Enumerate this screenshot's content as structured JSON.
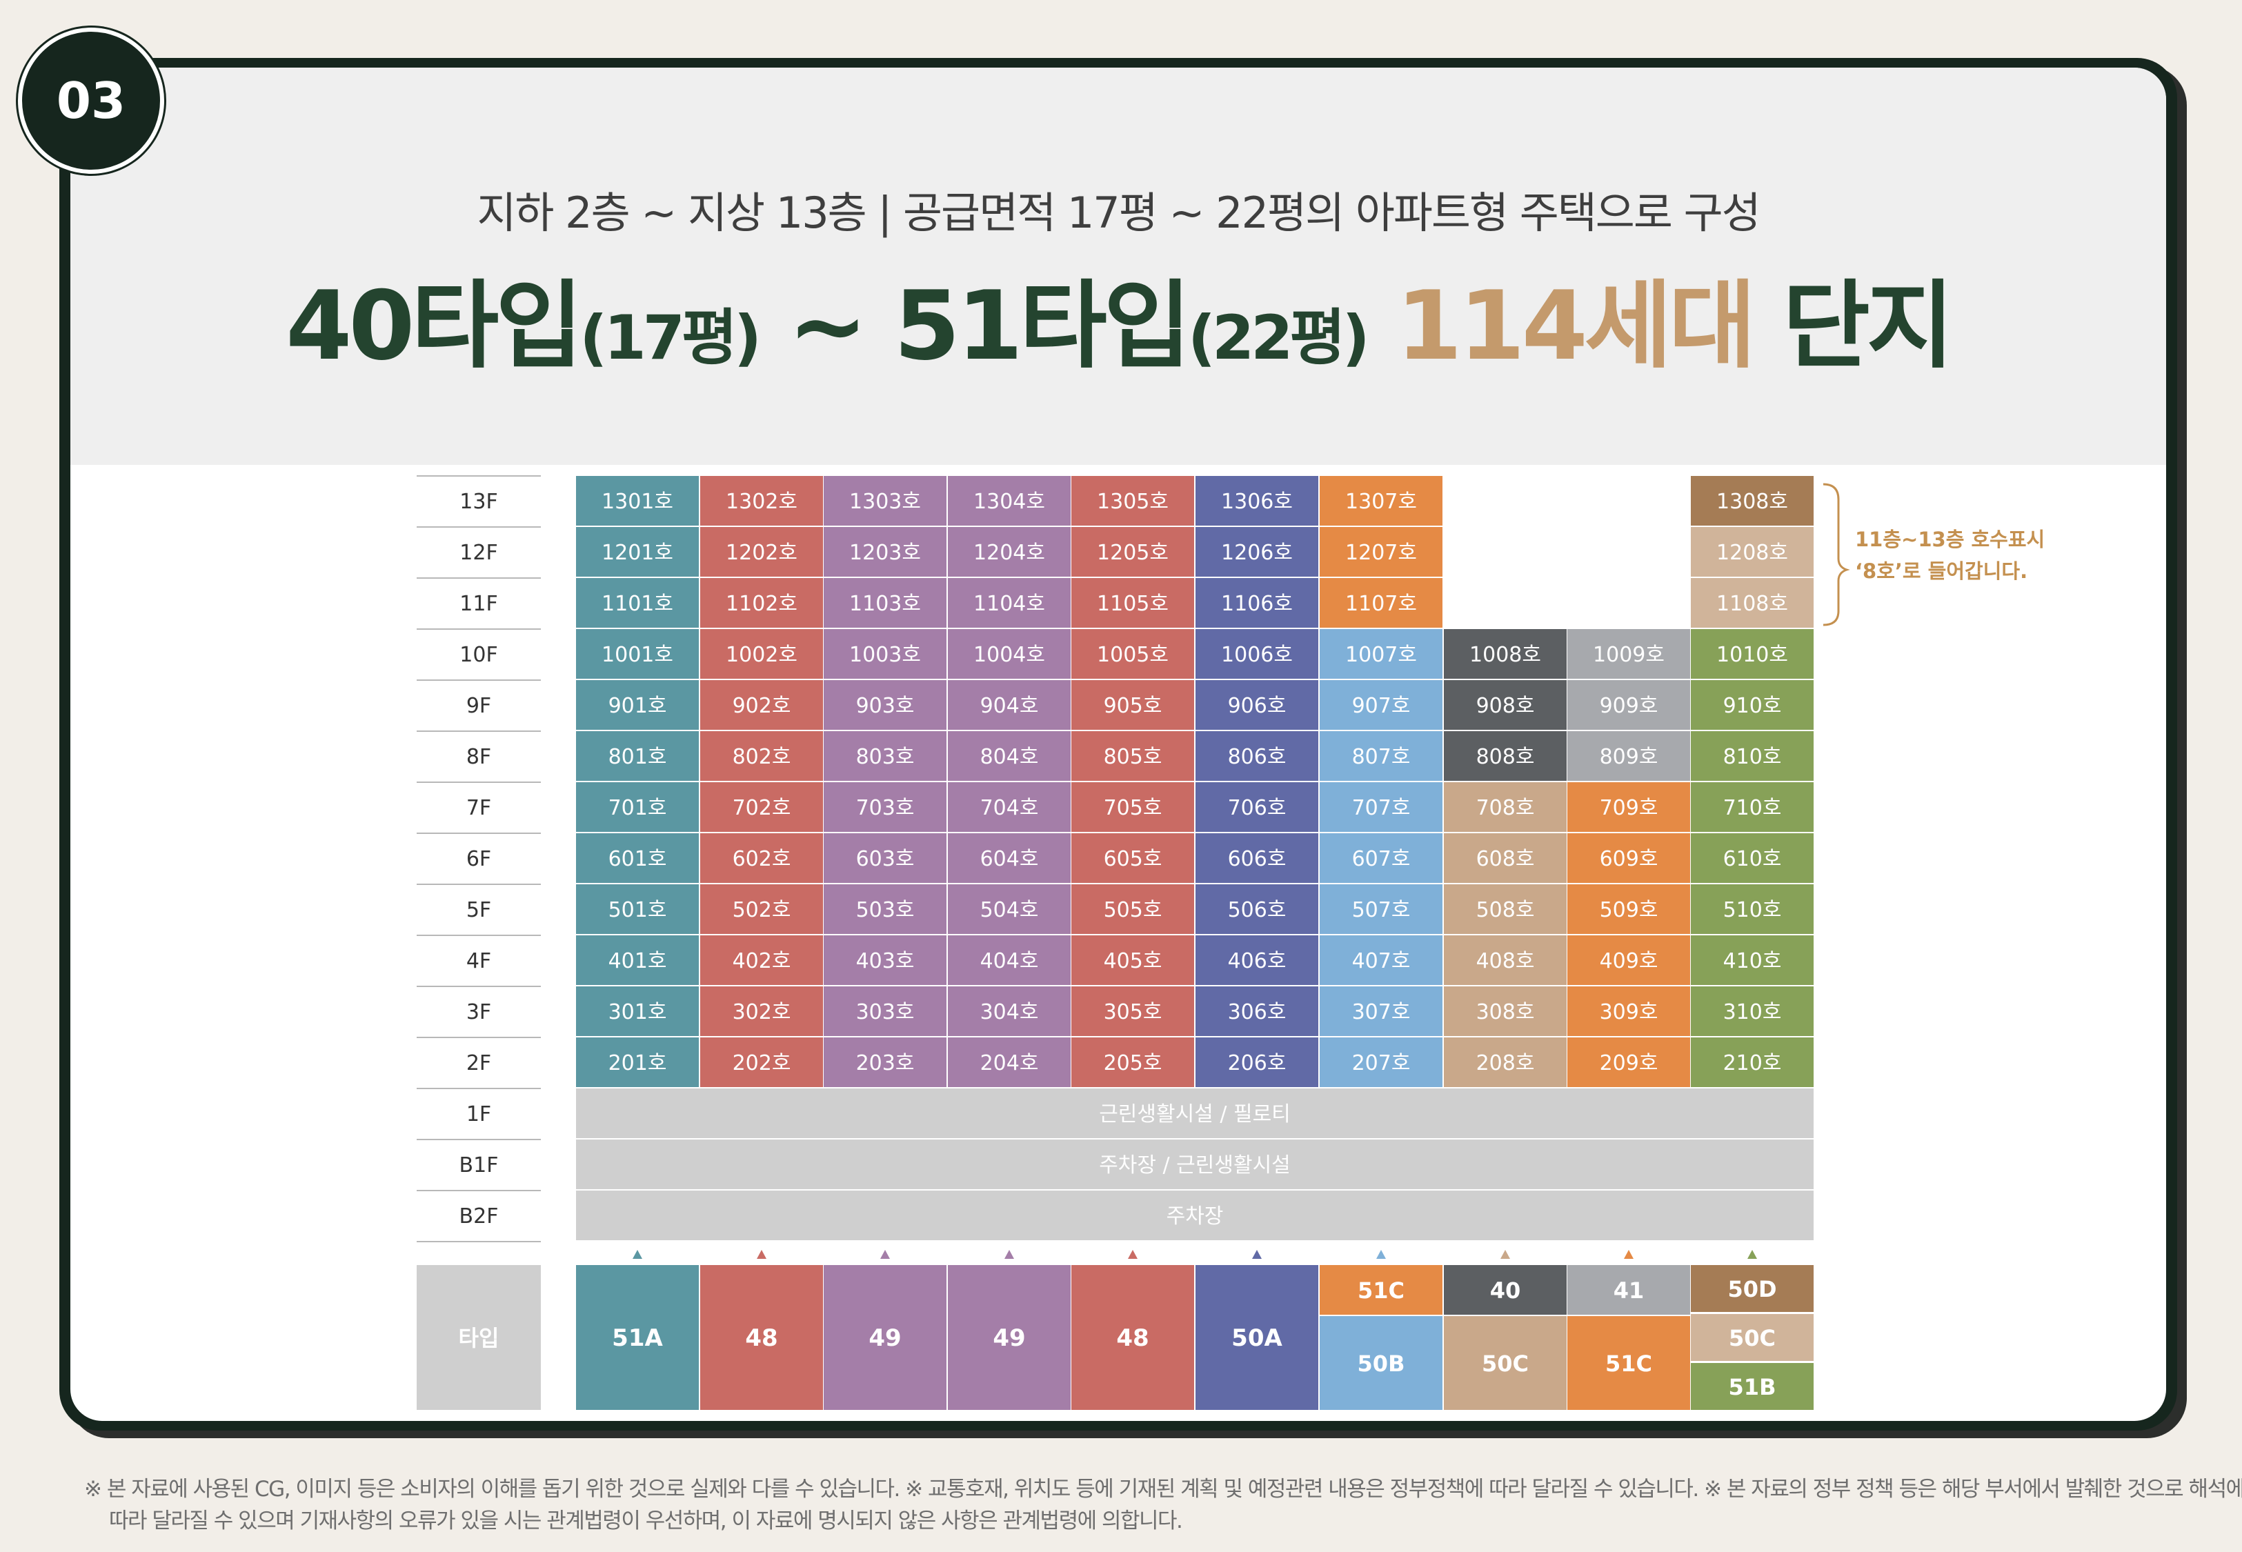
{
  "section_number": "03",
  "subtitle": "지하 2층 ~ 지상 13층   |   공급면적 17평 ~ 22평의 아파트형 주택으로 구성",
  "headline": {
    "part1": "40타입",
    "part1_small": "(17평)",
    "sep": " ~ ",
    "part2": "51타입",
    "part2_small": "(22평)",
    "count": "114세대",
    "suffix": "단지"
  },
  "colors": {
    "col1": "#5b97a2",
    "col2": "#c96b64",
    "col3": "#a47ea8",
    "col4": "#a47ea8",
    "col5": "#c96b64",
    "col6": "#616aa6",
    "orange": "#e58a45",
    "light_blue": "#7fb0d8",
    "dark_gray": "#5c5f62",
    "light_gray": "#a7a9ad",
    "tan": "#c9a88a",
    "light_tan": "#d0b49a",
    "brown": "#a57c55",
    "green": "#87a158",
    "common": "#cfcfcf",
    "accent_text": "#c4904f"
  },
  "floors": [
    "13F",
    "12F",
    "11F",
    "10F",
    "9F",
    "8F",
    "7F",
    "6F",
    "5F",
    "4F",
    "3F",
    "2F",
    "1F",
    "B1F",
    "B2F"
  ],
  "units": {
    "13F": [
      "1301호",
      "1302호",
      "1303호",
      "1304호",
      "1305호",
      "1306호",
      "1307호",
      "",
      "",
      "1308호"
    ],
    "12F": [
      "1201호",
      "1202호",
      "1203호",
      "1204호",
      "1205호",
      "1206호",
      "1207호",
      "",
      "",
      "1208호"
    ],
    "11F": [
      "1101호",
      "1102호",
      "1103호",
      "1104호",
      "1105호",
      "1106호",
      "1107호",
      "",
      "",
      "1108호"
    ],
    "10F": [
      "1001호",
      "1002호",
      "1003호",
      "1004호",
      "1005호",
      "1006호",
      "1007호",
      "1008호",
      "1009호",
      "1010호"
    ],
    "9F": [
      "901호",
      "902호",
      "903호",
      "904호",
      "905호",
      "906호",
      "907호",
      "908호",
      "909호",
      "910호"
    ],
    "8F": [
      "801호",
      "802호",
      "803호",
      "804호",
      "805호",
      "806호",
      "807호",
      "808호",
      "809호",
      "810호"
    ],
    "7F": [
      "701호",
      "702호",
      "703호",
      "704호",
      "705호",
      "706호",
      "707호",
      "708호",
      "709호",
      "710호"
    ],
    "6F": [
      "601호",
      "602호",
      "603호",
      "604호",
      "605호",
      "606호",
      "607호",
      "608호",
      "609호",
      "610호"
    ],
    "5F": [
      "501호",
      "502호",
      "503호",
      "504호",
      "505호",
      "506호",
      "507호",
      "508호",
      "509호",
      "510호"
    ],
    "4F": [
      "401호",
      "402호",
      "403호",
      "404호",
      "405호",
      "406호",
      "407호",
      "408호",
      "409호",
      "410호"
    ],
    "3F": [
      "301호",
      "302호",
      "303호",
      "304호",
      "305호",
      "306호",
      "307호",
      "308호",
      "309호",
      "310호"
    ],
    "2F": [
      "201호",
      "202호",
      "203호",
      "204호",
      "205호",
      "206호",
      "207호",
      "208호",
      "209호",
      "210호"
    ]
  },
  "common_floors": {
    "1F": "근린생활시설 / 필로티",
    "B1F": "주차장 / 근린생활시설",
    "B2F": "주차장"
  },
  "annotation": {
    "line1": "11층~13층 호수표시",
    "line2": "‘8호’로 들어갑니다."
  },
  "type_label": "타입",
  "types": [
    "51A",
    "48",
    "49",
    "49",
    "48",
    "50A",
    "51C",
    "40",
    "41",
    "50D",
    "50B",
    "50C",
    "51C",
    "50C",
    "51B"
  ],
  "disclaimer": {
    "line1": "※ 본 자료에 사용된 CG, 이미지 등은 소비자의 이해를 돕기 위한 것으로 실제와 다를 수 있습니다. ※ 교통호재, 위치도 등에 기재된 계획 및 예정관련 내용은 정부정책에 따라 달라질 수 있습니다. ※ 본 자료의 정부 정책 등은 해당 부서에서 발췌한 것으로 해석에",
    "line2": "따라 달라질 수 있으며 기재사항의 오류가 있을 시는 관계법령이 우선하며, 이 자료에 명시되지 않은 사항은 관계법령에 의합니다."
  }
}
